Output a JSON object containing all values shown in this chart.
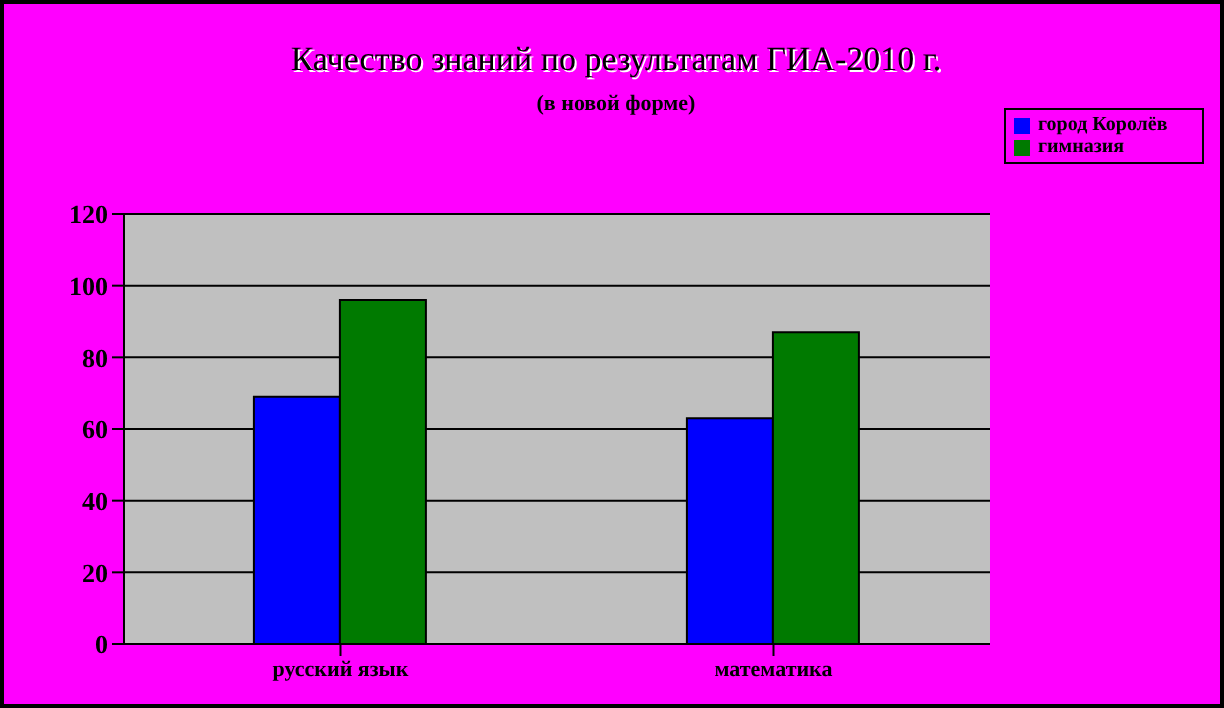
{
  "chart_data": {
    "type": "bar",
    "title": "Качество знаний по результатам ГИА-2010 г.",
    "subtitle": "(в новой форме)",
    "categories": [
      "русский язык",
      "математика"
    ],
    "series": [
      {
        "name": "город Королёв",
        "color": "#0000ff",
        "values": [
          69,
          63
        ]
      },
      {
        "name": "гимназия",
        "color": "#007a00",
        "values": [
          96,
          87
        ]
      }
    ],
    "ylim": [
      0,
      120
    ],
    "yticks": [
      0,
      20,
      40,
      60,
      80,
      100,
      120
    ],
    "grid": "y",
    "legend": "top right"
  }
}
